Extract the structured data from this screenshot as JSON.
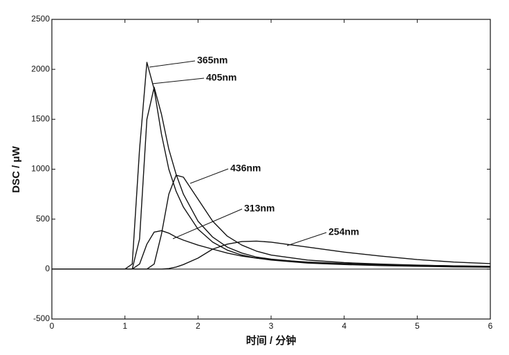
{
  "chart_data": {
    "type": "line",
    "x_label": "时间 / 分钟",
    "y_label": "DSC / μW",
    "x": [
      0,
      0.5,
      1,
      1.1,
      1.2,
      1.3,
      1.4,
      1.5,
      1.6,
      1.7,
      1.8,
      2,
      2.2,
      2.4,
      2.6,
      2.8,
      3,
      3.5,
      4,
      4.5,
      5,
      5.5,
      6
    ],
    "series": [
      {
        "name": "365nm",
        "color": "#111111",
        "values": [
          0,
          0,
          0,
          50,
          1200,
          2070,
          1800,
          1350,
          1000,
          780,
          620,
          400,
          270,
          190,
          140,
          110,
          90,
          60,
          45,
          35,
          28,
          22,
          18
        ]
      },
      {
        "name": "405nm",
        "color": "#111111",
        "values": [
          0,
          0,
          0,
          0,
          300,
          1500,
          1820,
          1550,
          1200,
          950,
          750,
          480,
          320,
          220,
          160,
          120,
          100,
          65,
          48,
          38,
          30,
          24,
          20
        ]
      },
      {
        "name": "436nm",
        "color": "#111111",
        "values": [
          0,
          0,
          0,
          0,
          0,
          0,
          50,
          350,
          750,
          940,
          920,
          700,
          480,
          330,
          240,
          180,
          140,
          90,
          65,
          50,
          40,
          32,
          25
        ]
      },
      {
        "name": "313nm",
        "color": "#111111",
        "values": [
          0,
          0,
          0,
          0,
          50,
          250,
          370,
          385,
          360,
          320,
          290,
          240,
          200,
          160,
          130,
          110,
          95,
          70,
          55,
          45,
          38,
          32,
          28
        ]
      },
      {
        "name": "254nm",
        "color": "#111111",
        "values": [
          0,
          0,
          0,
          0,
          0,
          0,
          0,
          0,
          5,
          20,
          45,
          110,
          200,
          250,
          275,
          280,
          270,
          220,
          170,
          130,
          95,
          70,
          55
        ]
      }
    ],
    "xlim": [
      0,
      6
    ],
    "xticks": [
      0,
      1,
      2,
      3,
      4,
      5,
      6
    ],
    "ylim": [
      -500,
      2500
    ],
    "yticks": [
      -500,
      0,
      500,
      1000,
      1500,
      2000,
      2500
    ]
  }
}
